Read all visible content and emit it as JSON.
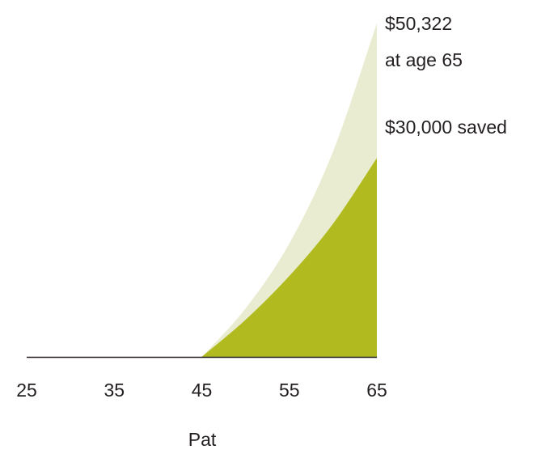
{
  "chart_data": {
    "type": "area",
    "title": "",
    "xlabel": "Pat",
    "ylabel": "",
    "x_ticks": [
      25,
      35,
      45,
      55,
      65
    ],
    "xlim": [
      25,
      65
    ],
    "ylim": [
      0,
      52000
    ],
    "grid": false,
    "colors": {
      "total": "#e9ecd0",
      "saved": "#b1bb1f",
      "baseline": "#231f20"
    },
    "series": [
      {
        "key": "total",
        "x": [
          25,
          45,
          50,
          55,
          60,
          65
        ],
        "values": [
          0,
          0,
          7300,
          17100,
          31000,
          50322
        ]
      },
      {
        "key": "saved",
        "x": [
          25,
          45,
          50,
          55,
          60,
          65
        ],
        "values": [
          0,
          0,
          5600,
          12200,
          20100,
          30000
        ]
      }
    ],
    "annotations": [
      {
        "key": "final_value",
        "text": "$50,322",
        "x": 65,
        "y": 50322
      },
      {
        "key": "at_age",
        "text": "at age 65"
      },
      {
        "key": "saved",
        "text": "$30,000 saved",
        "x": 65,
        "y": 30000
      }
    ]
  }
}
